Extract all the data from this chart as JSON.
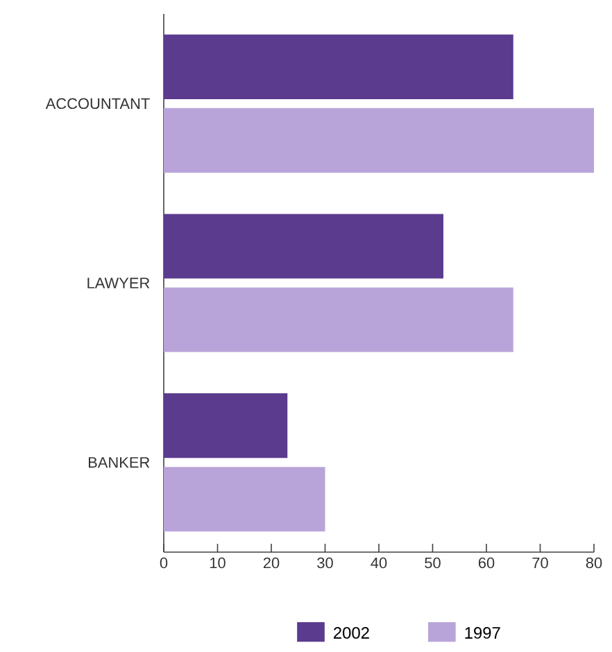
{
  "chart_data": {
    "type": "bar",
    "orientation": "horizontal",
    "categories": [
      "ACCOUNTANT",
      "LAWYER",
      "BANKER"
    ],
    "series": [
      {
        "name": "2002",
        "color": "#5b3b8e",
        "values": [
          65,
          52,
          23
        ]
      },
      {
        "name": "1997",
        "color": "#b9a4d9",
        "values": [
          80,
          65,
          30
        ]
      }
    ],
    "xlim": [
      0,
      80
    ],
    "xticks": [
      0,
      10,
      20,
      30,
      40,
      50,
      60,
      70,
      80
    ],
    "grid": false,
    "legend": "bottom"
  }
}
